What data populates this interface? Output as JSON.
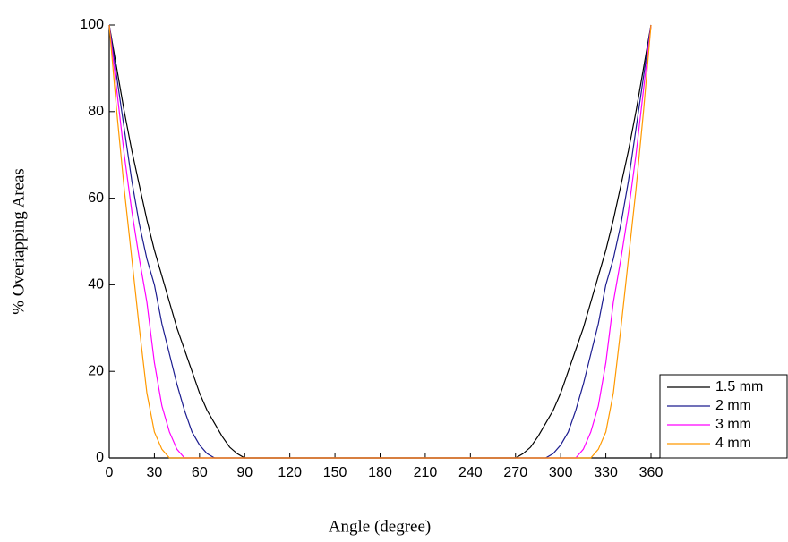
{
  "chart_data": {
    "type": "line",
    "xlabel": "Angle (degree)",
    "ylabel": "% Overiapping Areas",
    "x": [
      0,
      5,
      10,
      15,
      20,
      25,
      30,
      35,
      40,
      45,
      50,
      55,
      60,
      65,
      70,
      75,
      80,
      85,
      90,
      95,
      100,
      105,
      110,
      115,
      120,
      125,
      130,
      135,
      140,
      145,
      150,
      155,
      160,
      165,
      170,
      175,
      180,
      185,
      190,
      195,
      200,
      205,
      210,
      215,
      220,
      225,
      230,
      235,
      240,
      245,
      250,
      255,
      260,
      265,
      270,
      275,
      280,
      285,
      290,
      295,
      300,
      305,
      310,
      315,
      320,
      325,
      330,
      335,
      340,
      345,
      350,
      355,
      360
    ],
    "series": [
      {
        "name": "1.5 mm",
        "color": "#000000",
        "values": [
          100,
          90,
          80,
          71,
          63,
          55,
          48,
          42,
          36,
          30,
          25,
          20,
          15,
          11,
          8,
          5,
          2.5,
          1,
          0,
          0,
          0,
          0,
          0,
          0,
          0,
          0,
          0,
          0,
          0,
          0,
          0,
          0,
          0,
          0,
          0,
          0,
          0,
          0,
          0,
          0,
          0,
          0,
          0,
          0,
          0,
          0,
          0,
          0,
          0,
          0,
          0,
          0,
          0,
          0,
          0,
          1,
          2.5,
          5,
          8,
          11,
          15,
          20,
          25,
          30,
          36,
          42,
          48,
          55,
          63,
          71,
          80,
          90,
          100
        ]
      },
      {
        "name": "2 mm",
        "color": "#1c1c8f",
        "values": [
          100,
          88,
          76,
          64,
          54,
          46,
          40,
          31,
          24,
          17,
          11,
          6,
          3,
          1,
          0,
          0,
          0,
          0,
          0,
          0,
          0,
          0,
          0,
          0,
          0,
          0,
          0,
          0,
          0,
          0,
          0,
          0,
          0,
          0,
          0,
          0,
          0,
          0,
          0,
          0,
          0,
          0,
          0,
          0,
          0,
          0,
          0,
          0,
          0,
          0,
          0,
          0,
          0,
          0,
          0,
          0,
          0,
          0,
          0,
          1,
          3,
          6,
          11,
          17,
          24,
          31,
          40,
          46,
          54,
          64,
          76,
          88,
          100
        ]
      },
      {
        "name": "3 mm",
        "color": "#ff00ff",
        "values": [
          100,
          85,
          70,
          57,
          46,
          36,
          22,
          12,
          6,
          2,
          0,
          0,
          0,
          0,
          0,
          0,
          0,
          0,
          0,
          0,
          0,
          0,
          0,
          0,
          0,
          0,
          0,
          0,
          0,
          0,
          0,
          0,
          0,
          0,
          0,
          0,
          0,
          0,
          0,
          0,
          0,
          0,
          0,
          0,
          0,
          0,
          0,
          0,
          0,
          0,
          0,
          0,
          0,
          0,
          0,
          0,
          0,
          0,
          0,
          0,
          0,
          0,
          0,
          2,
          6,
          12,
          22,
          36,
          46,
          57,
          70,
          85,
          100
        ]
      },
      {
        "name": "4 mm",
        "color": "#ff9900",
        "values": [
          100,
          80,
          62,
          46,
          30,
          15,
          6,
          2,
          0,
          0,
          0,
          0,
          0,
          0,
          0,
          0,
          0,
          0,
          0,
          0,
          0,
          0,
          0,
          0,
          0,
          0,
          0,
          0,
          0,
          0,
          0,
          0,
          0,
          0,
          0,
          0,
          0,
          0,
          0,
          0,
          0,
          0,
          0,
          0,
          0,
          0,
          0,
          0,
          0,
          0,
          0,
          0,
          0,
          0,
          0,
          0,
          0,
          0,
          0,
          0,
          0,
          0,
          0,
          0,
          0,
          2,
          6,
          15,
          30,
          46,
          62,
          80,
          100
        ]
      }
    ],
    "xlim": [
      0,
      360
    ],
    "xticks": [
      0,
      30,
      60,
      90,
      120,
      150,
      180,
      210,
      240,
      270,
      300,
      330,
      360
    ],
    "ylim": [
      0,
      100
    ],
    "yticks": [
      0,
      20,
      40,
      60,
      80,
      100
    ],
    "legend": "lower right"
  }
}
